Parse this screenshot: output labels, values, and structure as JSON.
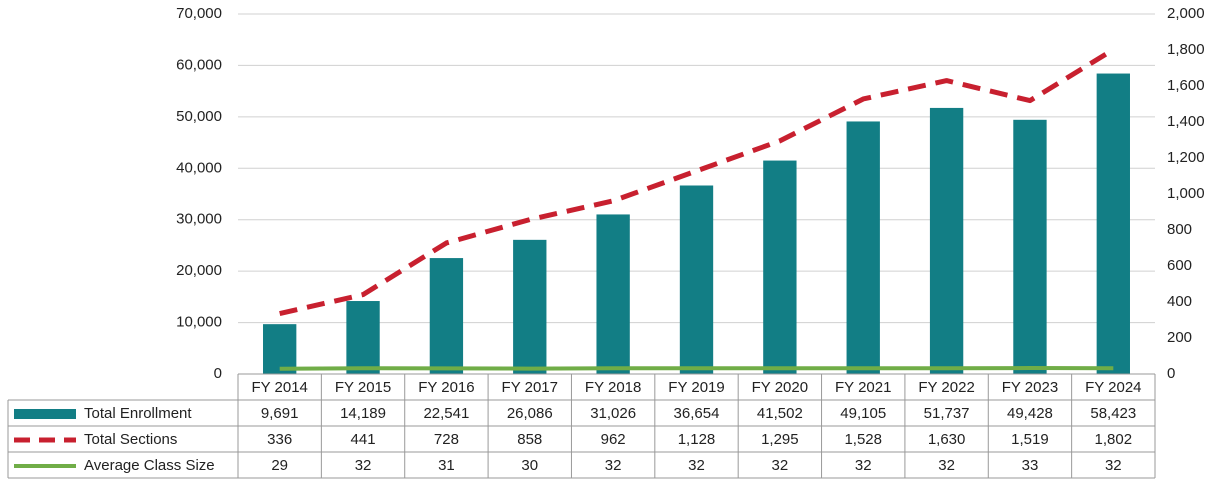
{
  "chart_data": {
    "type": "bar",
    "categories": [
      "FY 2014",
      "FY 2015",
      "FY 2016",
      "FY 2017",
      "FY 2018",
      "FY 2019",
      "FY 2020",
      "FY 2021",
      "FY 2022",
      "FY 2023",
      "FY 2024"
    ],
    "series": [
      {
        "name": "Total Enrollment",
        "color": "#127e85",
        "type": "bar",
        "values": [
          9691,
          14189,
          22541,
          26086,
          31026,
          36654,
          41502,
          49105,
          51737,
          49428,
          58423
        ],
        "value_labels": [
          "9,691",
          "14,189",
          "22,541",
          "26,086",
          "31,026",
          "36,654",
          "41,502",
          "49,105",
          "51,737",
          "49,428",
          "58,423"
        ]
      },
      {
        "name": "Total Sections",
        "color": "#c8202f",
        "type": "line",
        "line_style": "dashed",
        "axis": "y2",
        "values": [
          336,
          441,
          728,
          858,
          962,
          1128,
          1295,
          1528,
          1630,
          1519,
          1802
        ],
        "value_labels": [
          "336",
          "441",
          "728",
          "858",
          "962",
          "1,128",
          "1,295",
          "1,528",
          "1,630",
          "1,519",
          "1,802"
        ]
      },
      {
        "name": "Average Class Size",
        "color": "#70ad47",
        "type": "line",
        "line_style": "solid",
        "axis": "y2",
        "values": [
          29,
          32,
          31,
          30,
          32,
          32,
          32,
          32,
          32,
          33,
          32
        ]
      }
    ],
    "ylim": [
      0,
      70000
    ],
    "yticks": [
      0,
      {
        "value": 10000,
        "label": "10,000"
      },
      {
        "value": 20000,
        "label": "20,000"
      },
      {
        "value": 30000,
        "label": "30,000"
      },
      {
        "value": 40000,
        "label": "40,000"
      },
      {
        "value": 50000,
        "label": "50,000"
      },
      {
        "value": 60000,
        "label": "60,000"
      },
      {
        "value": 70000,
        "label": "70,000"
      }
    ],
    "y2lim": [
      0,
      2000
    ],
    "y2ticks": [
      0,
      200,
      400,
      600,
      800,
      {
        "value": 1000,
        "label": "1,000"
      },
      {
        "value": 1200,
        "label": "1,200"
      },
      {
        "value": 1400,
        "label": "1,400"
      },
      {
        "value": 1600,
        "label": "1,600"
      },
      {
        "value": 1800,
        "label": "1,800"
      },
      {
        "value": 2000,
        "label": "2,000"
      }
    ],
    "grid": true
  }
}
